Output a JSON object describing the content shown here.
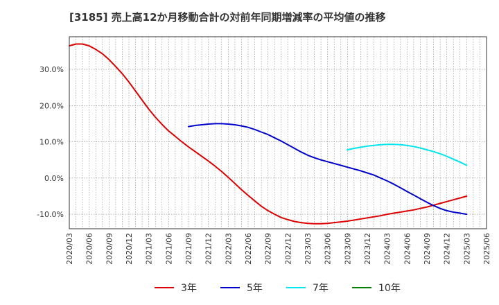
{
  "chart_data": {
    "type": "line",
    "title": "[3185]  売上高12か月移動合計の対前年同期増減率の平均値の推移",
    "xlabel": "",
    "ylabel": "",
    "ylim": [
      -14,
      39
    ],
    "yticks": [
      -10,
      0,
      10,
      20,
      30
    ],
    "ytick_labels": [
      "-10.0%",
      "0.0%",
      "10.0%",
      "20.0%",
      "30.0%"
    ],
    "x_range": [
      "2020-03",
      "2025-06"
    ],
    "xtick_labels": [
      "2020/03",
      "2020/06",
      "2020/09",
      "2020/12",
      "2021/03",
      "2021/06",
      "2021/09",
      "2021/12",
      "2022/03",
      "2022/06",
      "2022/09",
      "2022/12",
      "2023/03",
      "2023/06",
      "2023/09",
      "2023/12",
      "2024/03",
      "2024/06",
      "2024/09",
      "2024/12",
      "2025/03",
      "2025/06"
    ],
    "grid": true,
    "legend_position": "bottom",
    "series": [
      {
        "name": "3年",
        "color": "#dd0000",
        "points": [
          [
            "2020-03",
            36.5
          ],
          [
            "2020-04",
            37.0
          ],
          [
            "2020-05",
            37.0
          ],
          [
            "2020-06",
            36.5
          ],
          [
            "2020-07",
            35.5
          ],
          [
            "2020-08",
            34.3
          ],
          [
            "2020-09",
            32.7
          ],
          [
            "2020-10",
            30.8
          ],
          [
            "2020-11",
            28.8
          ],
          [
            "2020-12",
            26.5
          ],
          [
            "2021-01",
            24.0
          ],
          [
            "2021-02",
            21.5
          ],
          [
            "2021-03",
            19.0
          ],
          [
            "2021-04",
            16.8
          ],
          [
            "2021-05",
            14.8
          ],
          [
            "2021-06",
            13.0
          ],
          [
            "2021-07",
            11.5
          ],
          [
            "2021-08",
            10.0
          ],
          [
            "2021-09",
            8.6
          ],
          [
            "2021-10",
            7.3
          ],
          [
            "2021-11",
            6.0
          ],
          [
            "2021-12",
            4.7
          ],
          [
            "2022-01",
            3.3
          ],
          [
            "2022-02",
            1.8
          ],
          [
            "2022-03",
            0.2
          ],
          [
            "2022-04",
            -1.5
          ],
          [
            "2022-05",
            -3.2
          ],
          [
            "2022-06",
            -4.8
          ],
          [
            "2022-07",
            -6.3
          ],
          [
            "2022-08",
            -7.8
          ],
          [
            "2022-09",
            -9.0
          ],
          [
            "2022-10",
            -10.0
          ],
          [
            "2022-11",
            -10.9
          ],
          [
            "2022-12",
            -11.5
          ],
          [
            "2023-01",
            -12.0
          ],
          [
            "2023-02",
            -12.3
          ],
          [
            "2023-03",
            -12.5
          ],
          [
            "2023-04",
            -12.6
          ],
          [
            "2023-05",
            -12.6
          ],
          [
            "2023-06",
            -12.5
          ],
          [
            "2023-07",
            -12.3
          ],
          [
            "2023-08",
            -12.1
          ],
          [
            "2023-09",
            -11.9
          ],
          [
            "2023-10",
            -11.6
          ],
          [
            "2023-11",
            -11.3
          ],
          [
            "2023-12",
            -11.0
          ],
          [
            "2024-01",
            -10.7
          ],
          [
            "2024-02",
            -10.4
          ],
          [
            "2024-03",
            -10.0
          ],
          [
            "2024-04",
            -9.7
          ],
          [
            "2024-05",
            -9.4
          ],
          [
            "2024-06",
            -9.1
          ],
          [
            "2024-07",
            -8.8
          ],
          [
            "2024-08",
            -8.4
          ],
          [
            "2024-09",
            -8.0
          ],
          [
            "2024-10",
            -7.5
          ],
          [
            "2024-11",
            -7.0
          ],
          [
            "2024-12",
            -6.5
          ],
          [
            "2025-01",
            -6.0
          ],
          [
            "2025-02",
            -5.5
          ],
          [
            "2025-03",
            -5.0
          ]
        ]
      },
      {
        "name": "5年",
        "color": "#0000cc",
        "points": [
          [
            "2021-09",
            14.2
          ],
          [
            "2021-10",
            14.5
          ],
          [
            "2021-11",
            14.7
          ],
          [
            "2021-12",
            14.9
          ],
          [
            "2022-01",
            15.0
          ],
          [
            "2022-02",
            15.0
          ],
          [
            "2022-03",
            14.9
          ],
          [
            "2022-04",
            14.7
          ],
          [
            "2022-05",
            14.4
          ],
          [
            "2022-06",
            14.0
          ],
          [
            "2022-07",
            13.4
          ],
          [
            "2022-08",
            12.7
          ],
          [
            "2022-09",
            12.0
          ],
          [
            "2022-10",
            11.1
          ],
          [
            "2022-11",
            10.2
          ],
          [
            "2022-12",
            9.2
          ],
          [
            "2023-01",
            8.2
          ],
          [
            "2023-02",
            7.2
          ],
          [
            "2023-03",
            6.3
          ],
          [
            "2023-04",
            5.6
          ],
          [
            "2023-05",
            5.0
          ],
          [
            "2023-06",
            4.5
          ],
          [
            "2023-07",
            4.0
          ],
          [
            "2023-08",
            3.5
          ],
          [
            "2023-09",
            3.0
          ],
          [
            "2023-10",
            2.5
          ],
          [
            "2023-11",
            2.0
          ],
          [
            "2023-12",
            1.4
          ],
          [
            "2024-01",
            0.8
          ],
          [
            "2024-02",
            0.0
          ],
          [
            "2024-03",
            -0.8
          ],
          [
            "2024-04",
            -1.7
          ],
          [
            "2024-05",
            -2.7
          ],
          [
            "2024-06",
            -3.7
          ],
          [
            "2024-07",
            -4.7
          ],
          [
            "2024-08",
            -5.7
          ],
          [
            "2024-09",
            -6.7
          ],
          [
            "2024-10",
            -7.6
          ],
          [
            "2024-11",
            -8.4
          ],
          [
            "2024-12",
            -9.0
          ],
          [
            "2025-01",
            -9.4
          ],
          [
            "2025-02",
            -9.7
          ],
          [
            "2025-03",
            -10.0
          ]
        ]
      },
      {
        "name": "7年",
        "color": "#00e5ee",
        "points": [
          [
            "2023-09",
            7.8
          ],
          [
            "2023-10",
            8.2
          ],
          [
            "2023-11",
            8.5
          ],
          [
            "2023-12",
            8.8
          ],
          [
            "2024-01",
            9.0
          ],
          [
            "2024-02",
            9.2
          ],
          [
            "2024-03",
            9.3
          ],
          [
            "2024-04",
            9.3
          ],
          [
            "2024-05",
            9.2
          ],
          [
            "2024-06",
            9.0
          ],
          [
            "2024-07",
            8.7
          ],
          [
            "2024-08",
            8.3
          ],
          [
            "2024-09",
            7.8
          ],
          [
            "2024-10",
            7.3
          ],
          [
            "2024-11",
            6.7
          ],
          [
            "2024-12",
            6.0
          ],
          [
            "2025-01",
            5.2
          ],
          [
            "2025-02",
            4.4
          ],
          [
            "2025-03",
            3.5
          ]
        ]
      },
      {
        "name": "10年",
        "color": "#008000",
        "points": []
      }
    ]
  }
}
